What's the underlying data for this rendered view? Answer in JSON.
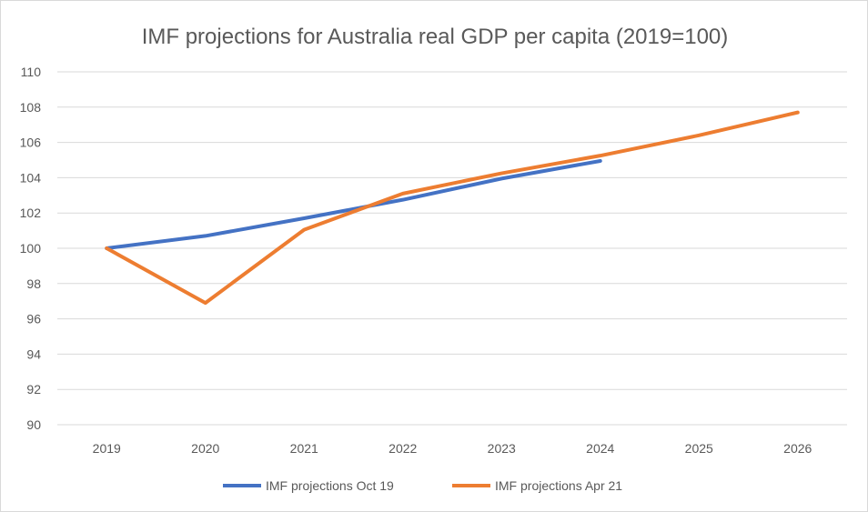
{
  "chart_data": {
    "type": "line",
    "title": "IMF projections for Australia real GDP per capita (2019=100)",
    "xlabel": "",
    "ylabel": "",
    "categories": [
      "2019",
      "2020",
      "2021",
      "2022",
      "2023",
      "2024",
      "2025",
      "2026"
    ],
    "ylim": [
      90,
      110
    ],
    "yticks": [
      90,
      92,
      94,
      96,
      98,
      100,
      102,
      104,
      106,
      108,
      110
    ],
    "grid": true,
    "legend_position": "bottom",
    "series": [
      {
        "name": "IMF projections Oct 19",
        "color": "#4472C4",
        "values": [
          100,
          100.7,
          101.7,
          102.75,
          103.95,
          104.95,
          null,
          null
        ]
      },
      {
        "name": "IMF projections Apr 21",
        "color": "#ED7D31",
        "values": [
          100,
          96.9,
          101.05,
          103.1,
          104.25,
          105.25,
          106.4,
          107.7
        ]
      }
    ]
  }
}
